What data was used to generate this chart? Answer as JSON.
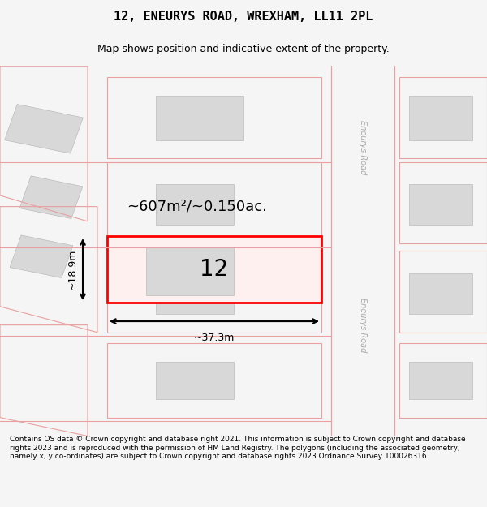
{
  "title_line1": "12, ENEURYS ROAD, WREXHAM, LL11 2PL",
  "title_line2": "Map shows position and indicative extent of the property.",
  "area_label": "~607m²/~0.150ac.",
  "width_label": "~37.3m",
  "height_label": "~18.9m",
  "number_label": "12",
  "road_label_top": "Eneurys Road",
  "road_label_bottom": "Eneurys Road",
  "footer_text": "Contains OS data © Crown copyright and database right 2021. This information is subject to Crown copyright and database rights 2023 and is reproduced with the permission of HM Land Registry. The polygons (including the associated geometry, namely x, y co-ordinates) are subject to Crown copyright and database rights 2023 Ordnance Survey 100026316.",
  "bg_color": "#f5f5f5",
  "map_bg": "#ffffff",
  "plot_rect_color": "#ff0000",
  "building_color": "#cccccc",
  "road_outline_color": "#f5a0a0",
  "map_area": [
    0.0,
    0.08,
    1.0,
    0.8
  ],
  "xlim": [
    0,
    100
  ],
  "ylim": [
    0,
    100
  ]
}
